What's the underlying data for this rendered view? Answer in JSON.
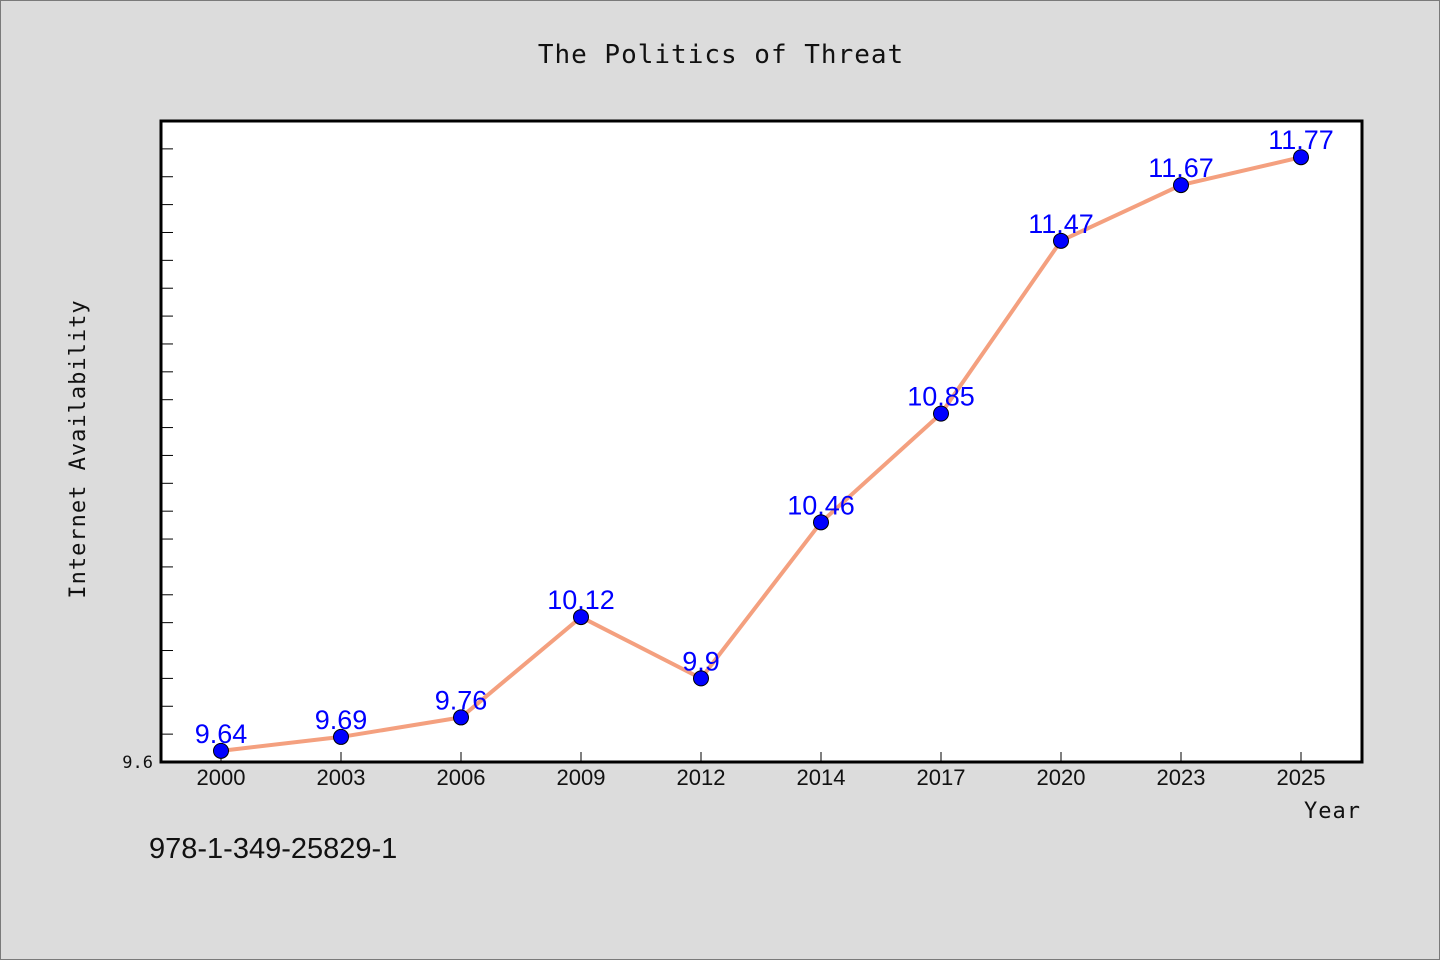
{
  "chart_data": {
    "type": "line",
    "title": "The Politics of Threat",
    "xlabel": "Year",
    "ylabel": "Internet Availability",
    "categories": [
      "2000",
      "2003",
      "2006",
      "2009",
      "2012",
      "2014",
      "2017",
      "2020",
      "2023",
      "2025"
    ],
    "series": [
      {
        "values": [
          9.64,
          9.69,
          9.76,
          10.12,
          9.9,
          10.46,
          10.85,
          11.47,
          11.67,
          11.77
        ],
        "labels": [
          "9.64",
          "9.69",
          "9.76",
          "10.12",
          "9.9",
          "10.46",
          "10.85",
          "11.47",
          "11.67",
          "11.77"
        ],
        "line_color": "#f4a07f",
        "marker_color": "#0000ff"
      }
    ],
    "ylim": [
      9.6,
      11.9
    ],
    "y_tick_labels": [
      {
        "value": 9.6,
        "label": "9.6"
      }
    ],
    "y_minor_tick_step": 0.1,
    "grid": false,
    "legend": "none"
  },
  "footer": {
    "code": "978-1-349-25829-1"
  },
  "colors": {
    "background": "#dcdcdc",
    "plot_background": "#ffffff",
    "line": "#f4a07f",
    "marker": "#0000ff",
    "data_label": "#0000ff"
  }
}
